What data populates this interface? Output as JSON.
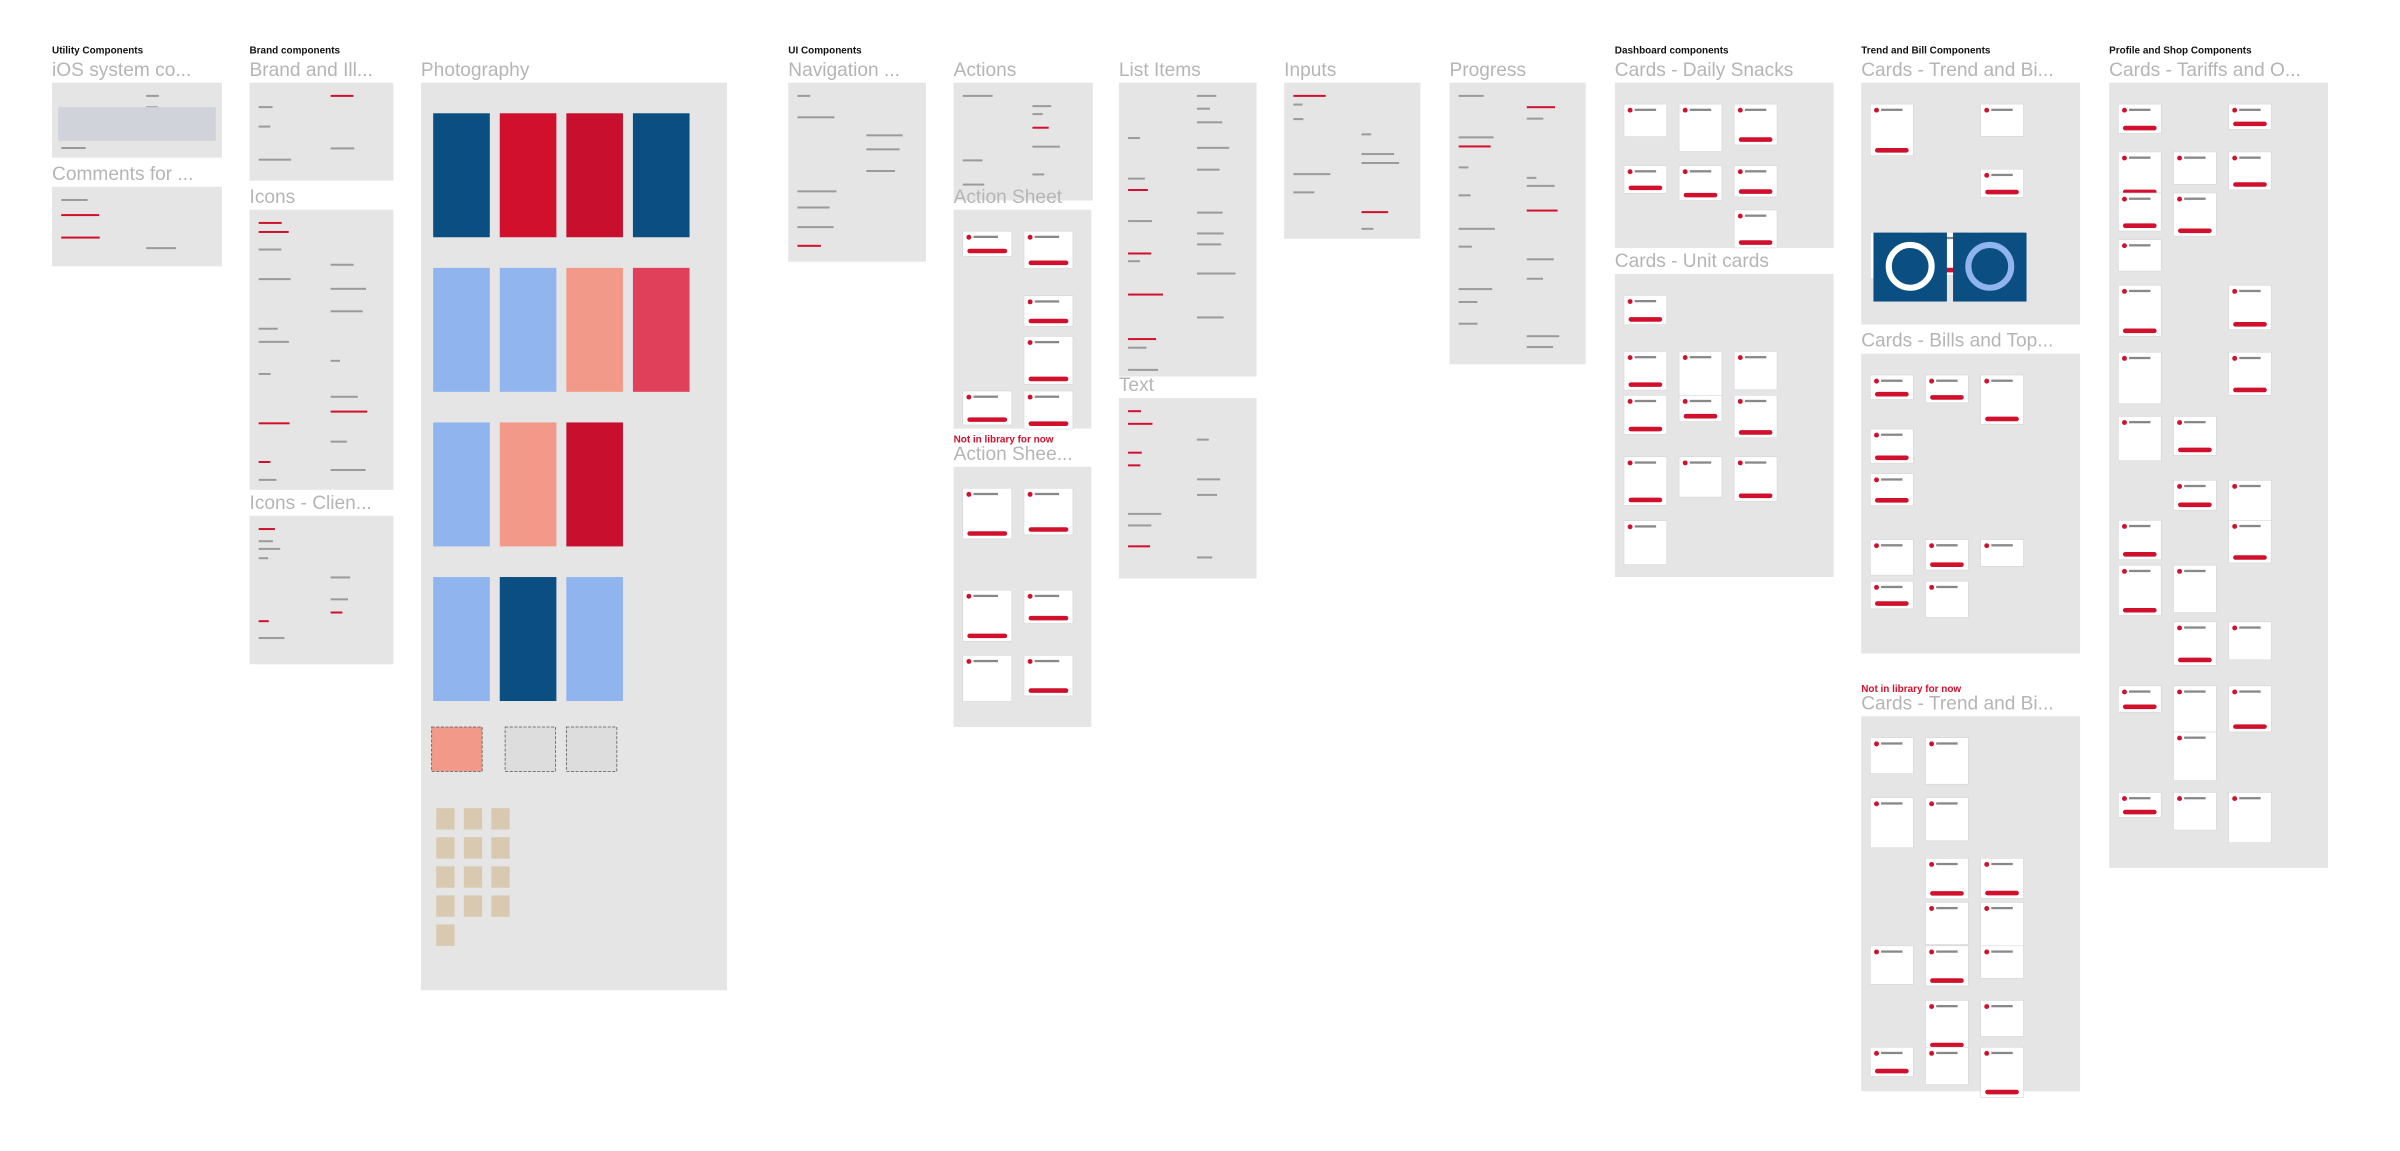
{
  "sections": [
    {
      "title": "Utility Components",
      "frames": [
        {
          "title": "iOS system co..."
        },
        {
          "title": "Comments for ..."
        }
      ]
    },
    {
      "title": "Brand components",
      "frames": [
        {
          "title": "Brand and Ill..."
        },
        {
          "title": "Icons"
        },
        {
          "title": "Icons - Clien..."
        },
        {
          "title": "Photography"
        }
      ]
    },
    {
      "title": "UI Components",
      "frames": [
        {
          "title": "Navigation ..."
        },
        {
          "title": "Actions"
        },
        {
          "title": "Action Sheet"
        },
        {
          "title": "Action Shee...",
          "note": "Not in library for now"
        },
        {
          "title": "List Items"
        },
        {
          "title": "Text"
        },
        {
          "title": "Inputs"
        },
        {
          "title": "Progress"
        }
      ]
    },
    {
      "title": "Dashboard components",
      "frames": [
        {
          "title": "Cards - Daily Snacks"
        },
        {
          "title": "Cards - Unit cards"
        }
      ]
    },
    {
      "title": "Trend and Bill Components",
      "frames": [
        {
          "title": "Cards - Trend and Bi..."
        },
        {
          "title": "Cards - Bills and Top..."
        },
        {
          "title": "Cards - Trend and Bi...",
          "note": "Not in library for now"
        }
      ]
    },
    {
      "title": "Profile and Shop Components",
      "frames": [
        {
          "title": "Cards - Tariffs and O..."
        }
      ]
    }
  ]
}
